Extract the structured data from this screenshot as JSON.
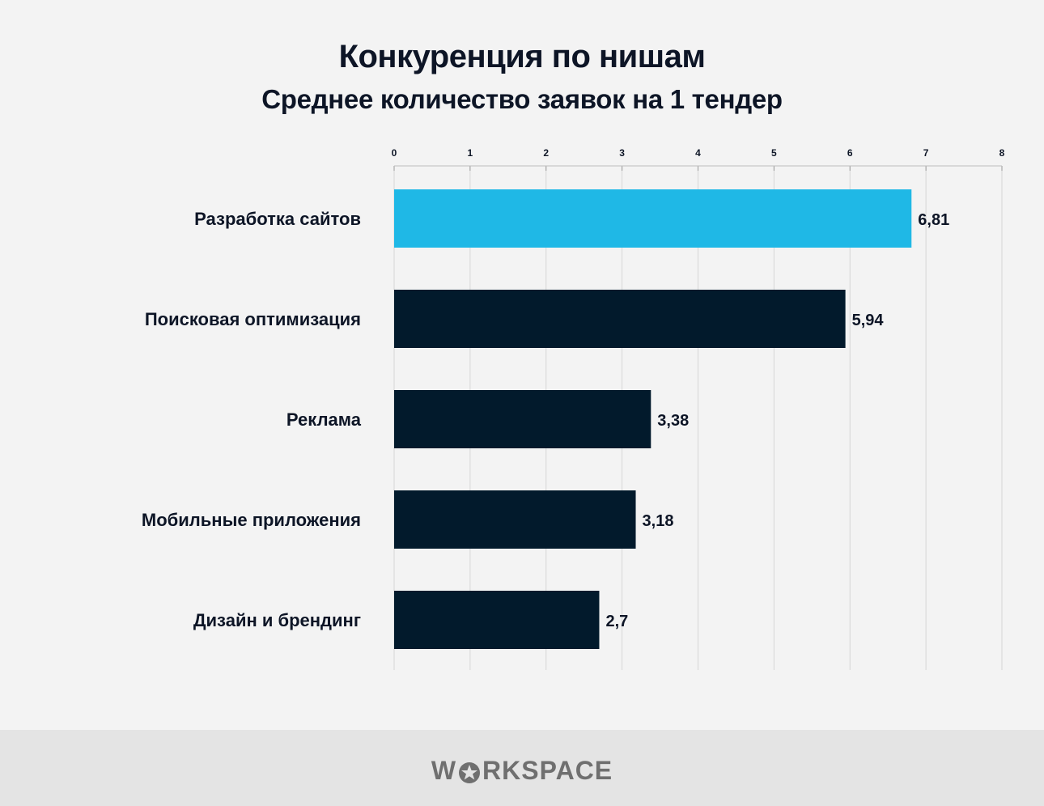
{
  "title": "Конкуренция по нишам",
  "subtitle": "Среднее количество заявок на 1 тендер",
  "footer": {
    "logo_text": "WORKSPACE"
  },
  "colors": {
    "highlight": "#1fb8e6",
    "bar": "#021a2c",
    "grid": "#d6d6d6",
    "background": "#f3f3f3",
    "footer": "#e4e4e4",
    "text": "#0d1526"
  },
  "chart_data": {
    "type": "bar",
    "orientation": "horizontal",
    "categories": [
      "Разработка сайтов",
      "Поисковая оптимизация",
      "Реклама",
      "Мобильные приложения",
      "Дизайн и брендинг"
    ],
    "values": [
      6.81,
      5.94,
      3.38,
      3.18,
      2.7
    ],
    "value_labels": [
      "6,81",
      "5,94",
      "3,38",
      "3,18",
      "2,7"
    ],
    "highlighted_index": 0,
    "xlim": [
      0,
      8
    ],
    "xticks": [
      0,
      1,
      2,
      3,
      4,
      5,
      6,
      7,
      8
    ],
    "xaxis_position": "top",
    "grid": true
  }
}
